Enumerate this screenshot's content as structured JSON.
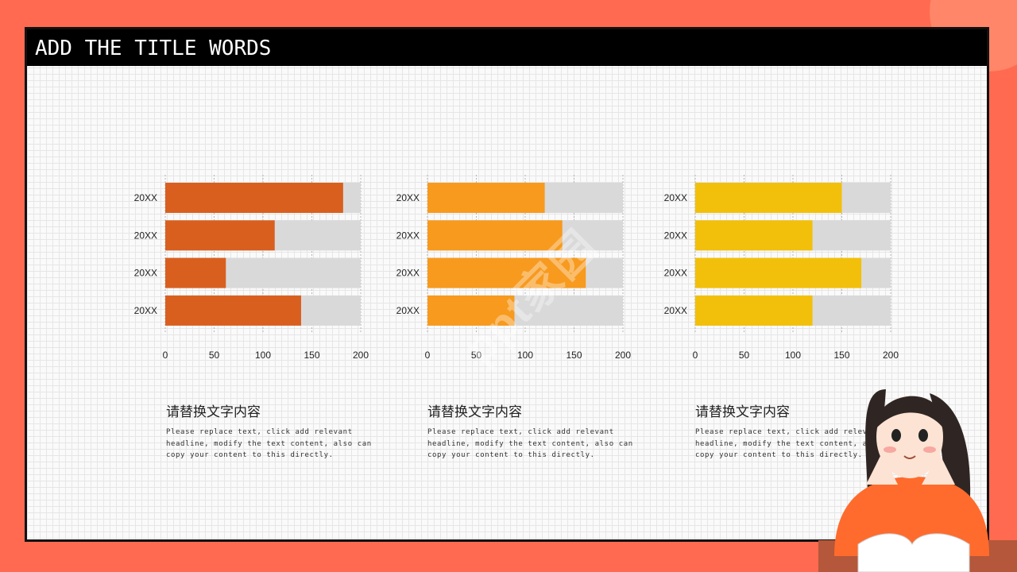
{
  "slide": {
    "title": "ADD THE TITLE WORDS",
    "watermark": "ppt家园"
  },
  "colors": {
    "background": "#ff6a50",
    "track": "#d9d9d9",
    "chart1": "#d95f1f",
    "chart2": "#f79a1e",
    "chart3": "#f2c00a"
  },
  "chart_data": [
    {
      "type": "bar",
      "orientation": "horizontal",
      "categories": [
        "20XX",
        "20XX",
        "20XX",
        "20XX"
      ],
      "values": [
        182,
        112,
        62,
        139
      ],
      "max": 200,
      "xlim": [
        0,
        200
      ],
      "xticks": [
        0,
        50,
        100,
        150,
        200
      ],
      "grid": true
    },
    {
      "type": "bar",
      "orientation": "horizontal",
      "categories": [
        "20XX",
        "20XX",
        "20XX",
        "20XX"
      ],
      "values": [
        120,
        138,
        162,
        89
      ],
      "max": 200,
      "xlim": [
        0,
        200
      ],
      "xticks": [
        0,
        50,
        100,
        150,
        200
      ],
      "grid": true
    },
    {
      "type": "bar",
      "orientation": "horizontal",
      "categories": [
        "20XX",
        "20XX",
        "20XX",
        "20XX"
      ],
      "values": [
        150,
        120,
        170,
        120
      ],
      "max": 200,
      "xlim": [
        0,
        200
      ],
      "xticks": [
        0,
        50,
        100,
        150,
        200
      ],
      "grid": true
    }
  ],
  "captions": [
    {
      "title": "请替换文字内容",
      "line1": "Please replace text, click add relevant",
      "line2": "headline, modify the text content, also can",
      "line3": "copy your content to this directly."
    },
    {
      "title": "请替换文字内容",
      "line1": "Please replace text, click add relevant",
      "line2": "headline, modify the text content, also can",
      "line3": "copy your content to this directly."
    },
    {
      "title": "请替换文字内容",
      "line1": "Please replace text, click add relevant",
      "line2": "headline, modify the text content, also can",
      "line3": "copy your content to this directly."
    }
  ]
}
